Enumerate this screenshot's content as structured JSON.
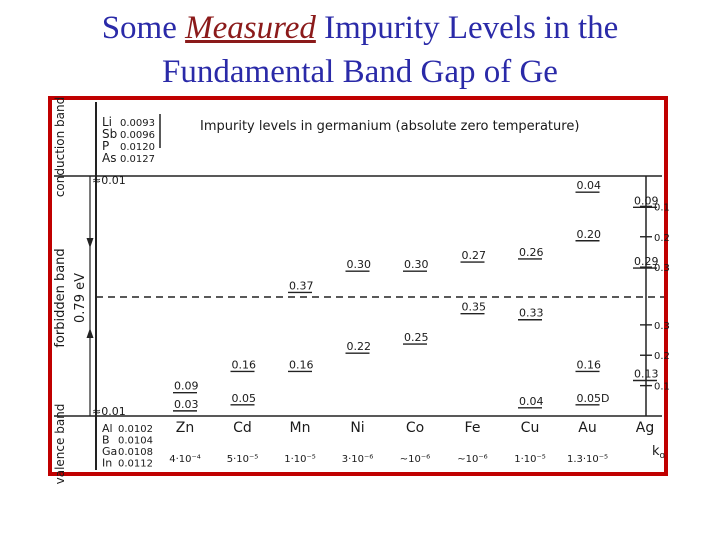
{
  "title": {
    "pre": "Some ",
    "emph": "Measured",
    "post": " Impurity Levels in the",
    "line2": "Fundamental Band Gap of Ge"
  },
  "diagram": {
    "header": "Impurity   levels   in   germanium   (absolute   zero  temperature)",
    "conduction_label": "conduction band",
    "valence_label": "valence band",
    "forbidden_label": "forbidden band",
    "gap_label": "0.79 eV",
    "k_label": "k",
    "k_sub": "o",
    "donors": [
      {
        "el": "Li",
        "val": "0.0093"
      },
      {
        "el": "Sb",
        "val": "0.0096"
      },
      {
        "el": "P",
        "val": "0.0120"
      },
      {
        "el": "As",
        "val": "0.0127"
      }
    ],
    "donor_approx": "≈0.01",
    "acceptors": [
      {
        "el": "Al",
        "val": "0.0102"
      },
      {
        "el": "B",
        "val": "0.0104"
      },
      {
        "el": "Ga",
        "val": "0.0108"
      },
      {
        "el": "In",
        "val": "0.0112"
      }
    ],
    "acceptor_approx": "≈0.01",
    "columns": [
      {
        "el": "Zn",
        "k": "4·10⁻⁴"
      },
      {
        "el": "Cd",
        "k": "5·10⁻⁵"
      },
      {
        "el": "Mn",
        "k": "1·10⁻⁵"
      },
      {
        "el": "Ni",
        "k": "3·10⁻⁶"
      },
      {
        "el": "Co",
        "k": "~10⁻⁶"
      },
      {
        "el": "Fe",
        "k": "~10⁻⁶"
      },
      {
        "el": "Cu",
        "k": "1·10⁻⁵"
      },
      {
        "el": "Au",
        "k": "1.3·10⁻⁵"
      },
      {
        "el": "Ag",
        "k": ""
      }
    ],
    "levels": [
      {
        "col": 0,
        "from": "valence",
        "energy": 0.09,
        "text": "0.09"
      },
      {
        "col": 0,
        "from": "valence",
        "energy": 0.03,
        "text": "0.03"
      },
      {
        "col": 1,
        "from": "valence",
        "energy": 0.16,
        "text": "0.16"
      },
      {
        "col": 1,
        "from": "valence",
        "energy": 0.05,
        "text": "0.05"
      },
      {
        "col": 2,
        "from": "conduction",
        "energy": 0.37,
        "text": "0.37"
      },
      {
        "col": 2,
        "from": "valence",
        "energy": 0.16,
        "text": "0.16"
      },
      {
        "col": 3,
        "from": "conduction",
        "energy": 0.3,
        "text": "0.30"
      },
      {
        "col": 3,
        "from": "valence",
        "energy": 0.22,
        "text": "0.22"
      },
      {
        "col": 4,
        "from": "conduction",
        "energy": 0.3,
        "text": "0.30"
      },
      {
        "col": 4,
        "from": "valence",
        "energy": 0.25,
        "text": "0.25"
      },
      {
        "col": 5,
        "from": "conduction",
        "energy": 0.27,
        "text": "0.27"
      },
      {
        "col": 5,
        "from": "valence",
        "energy": 0.35,
        "text": "0.35"
      },
      {
        "col": 6,
        "from": "conduction",
        "energy": 0.26,
        "text": "0.26"
      },
      {
        "col": 6,
        "from": "valence",
        "energy": 0.33,
        "text": "0.33"
      },
      {
        "col": 6,
        "from": "valence",
        "energy": 0.04,
        "text": "0.04"
      },
      {
        "col": 7,
        "from": "conduction",
        "energy": 0.04,
        "text": "0.04"
      },
      {
        "col": 7,
        "from": "conduction",
        "energy": 0.2,
        "text": "0.20"
      },
      {
        "col": 7,
        "from": "valence",
        "energy": 0.16,
        "text": "0.16"
      },
      {
        "col": 7,
        "from": "valence",
        "energy": 0.05,
        "text": "0.05D"
      },
      {
        "col": 8,
        "from": "conduction",
        "energy": 0.09,
        "text": "0.09"
      },
      {
        "col": 8,
        "from": "conduction",
        "energy": 0.29,
        "text": "0.29"
      },
      {
        "col": 8,
        "from": "valence",
        "energy": 0.13,
        "text": "0.13"
      }
    ],
    "right_scale": [
      {
        "from": "conduction",
        "energy": 0.1,
        "text": "0.1"
      },
      {
        "from": "conduction",
        "energy": 0.2,
        "text": "0.2"
      },
      {
        "from": "conduction",
        "energy": 0.3,
        "text": "0.3"
      },
      {
        "from": "valence",
        "energy": 0.3,
        "text": "0.3"
      },
      {
        "from": "valence",
        "energy": 0.2,
        "text": "0.2"
      },
      {
        "from": "valence",
        "energy": 0.1,
        "text": "0.1"
      }
    ]
  }
}
